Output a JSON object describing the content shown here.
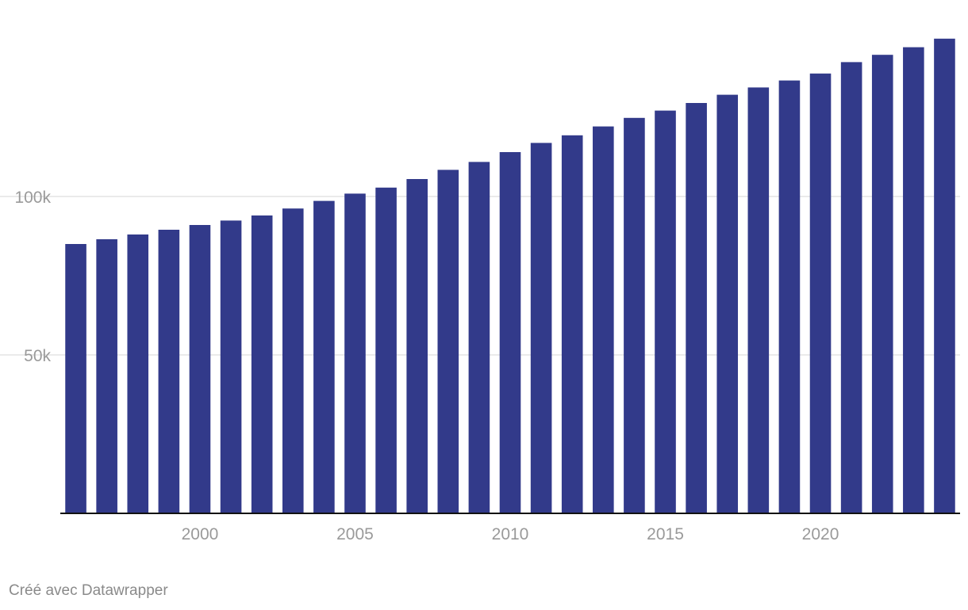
{
  "chart_data": {
    "type": "bar",
    "title": "",
    "xlabel": "",
    "ylabel": "",
    "ylim": [
      0,
      150000
    ],
    "grid": true,
    "bar_color": "#323a8a",
    "years": [
      1996,
      1997,
      1998,
      1999,
      2000,
      2001,
      2002,
      2003,
      2004,
      2005,
      2006,
      2007,
      2008,
      2009,
      2010,
      2011,
      2012,
      2013,
      2014,
      2015,
      2016,
      2017,
      2018,
      2019,
      2020,
      2021,
      2022,
      2023,
      2024
    ],
    "values": [
      85000,
      86500,
      88000,
      89500,
      91000,
      92400,
      94000,
      96200,
      98600,
      100900,
      102800,
      105500,
      108400,
      110900,
      114000,
      116900,
      119300,
      122100,
      124800,
      127100,
      129500,
      132100,
      134400,
      136600,
      138800,
      142400,
      144700,
      147100,
      149800
    ],
    "y_ticks": [
      {
        "value": 50000,
        "label": "50k"
      },
      {
        "value": 100000,
        "label": "100k"
      }
    ],
    "x_ticks": [
      {
        "value": 2000,
        "label": "2000"
      },
      {
        "value": 2005,
        "label": "2005"
      },
      {
        "value": 2010,
        "label": "2010"
      },
      {
        "value": 2015,
        "label": "2015"
      },
      {
        "value": 2020,
        "label": "2020"
      }
    ]
  },
  "footer": {
    "credit": "Créé avec Datawrapper"
  }
}
